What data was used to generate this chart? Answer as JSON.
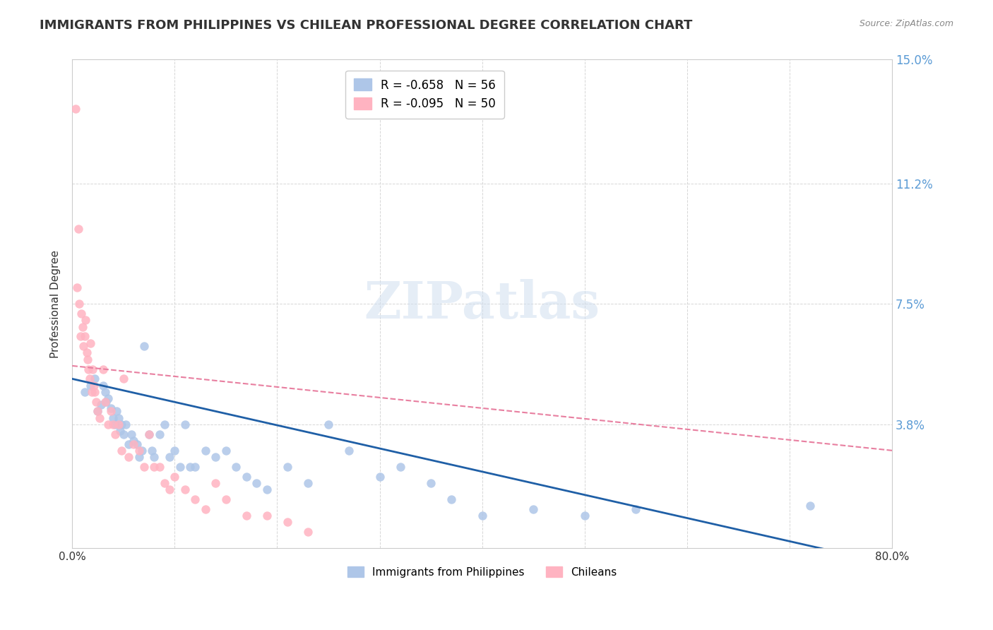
{
  "title": "IMMIGRANTS FROM PHILIPPINES VS CHILEAN PROFESSIONAL DEGREE CORRELATION CHART",
  "source": "Source: ZipAtlas.com",
  "xlabel": "",
  "ylabel": "Professional Degree",
  "xlim": [
    0.0,
    0.8
  ],
  "ylim": [
    0.0,
    0.15
  ],
  "xtick_labels": [
    "0.0%",
    "80.0%"
  ],
  "xtick_positions": [
    0.0,
    0.8
  ],
  "ytick_positions_right": [
    0.0,
    0.038,
    0.075,
    0.112,
    0.15
  ],
  "ytick_labels_right": [
    "",
    "3.8%",
    "7.5%",
    "11.2%",
    "15.0%"
  ],
  "ytick_color_right": "#5b9bd5",
  "legend_entries": [
    {
      "label": "R = -0.658   N = 56",
      "color": "#5b9bd5"
    },
    {
      "label": "R = -0.095   N = 50",
      "color": "#ff9cb0"
    }
  ],
  "legend_label_blue": "Immigrants from Philippines",
  "legend_label_pink": "Chileans",
  "blue_scatter_color": "#aec6e8",
  "pink_scatter_color": "#ffb3c1",
  "blue_line_color": "#1f5fa6",
  "pink_line_color": "#e87fa0",
  "watermark": "ZIPatlas",
  "background_color": "#ffffff",
  "blue_points_x": [
    0.012,
    0.018,
    0.022,
    0.025,
    0.028,
    0.03,
    0.032,
    0.033,
    0.035,
    0.038,
    0.04,
    0.042,
    0.043,
    0.045,
    0.047,
    0.048,
    0.05,
    0.052,
    0.055,
    0.058,
    0.06,
    0.063,
    0.065,
    0.068,
    0.07,
    0.075,
    0.078,
    0.08,
    0.085,
    0.09,
    0.095,
    0.1,
    0.105,
    0.11,
    0.115,
    0.12,
    0.13,
    0.14,
    0.15,
    0.16,
    0.17,
    0.18,
    0.19,
    0.21,
    0.23,
    0.25,
    0.27,
    0.3,
    0.32,
    0.35,
    0.37,
    0.4,
    0.45,
    0.5,
    0.55,
    0.72
  ],
  "blue_points_y": [
    0.048,
    0.05,
    0.052,
    0.042,
    0.044,
    0.05,
    0.048,
    0.045,
    0.046,
    0.043,
    0.04,
    0.038,
    0.042,
    0.04,
    0.036,
    0.038,
    0.035,
    0.038,
    0.032,
    0.035,
    0.033,
    0.032,
    0.028,
    0.03,
    0.062,
    0.035,
    0.03,
    0.028,
    0.035,
    0.038,
    0.028,
    0.03,
    0.025,
    0.038,
    0.025,
    0.025,
    0.03,
    0.028,
    0.03,
    0.025,
    0.022,
    0.02,
    0.018,
    0.025,
    0.02,
    0.038,
    0.03,
    0.022,
    0.025,
    0.02,
    0.015,
    0.01,
    0.012,
    0.01,
    0.012,
    0.013
  ],
  "pink_points_x": [
    0.003,
    0.005,
    0.006,
    0.007,
    0.008,
    0.009,
    0.01,
    0.011,
    0.012,
    0.013,
    0.014,
    0.015,
    0.016,
    0.017,
    0.018,
    0.019,
    0.02,
    0.021,
    0.022,
    0.023,
    0.025,
    0.027,
    0.03,
    0.032,
    0.035,
    0.038,
    0.04,
    0.042,
    0.045,
    0.048,
    0.05,
    0.055,
    0.06,
    0.065,
    0.07,
    0.075,
    0.08,
    0.085,
    0.09,
    0.095,
    0.1,
    0.11,
    0.12,
    0.13,
    0.14,
    0.15,
    0.17,
    0.19,
    0.21,
    0.23
  ],
  "pink_points_y": [
    0.135,
    0.08,
    0.098,
    0.075,
    0.065,
    0.072,
    0.068,
    0.062,
    0.065,
    0.07,
    0.06,
    0.058,
    0.055,
    0.052,
    0.063,
    0.048,
    0.055,
    0.05,
    0.048,
    0.045,
    0.042,
    0.04,
    0.055,
    0.045,
    0.038,
    0.042,
    0.038,
    0.035,
    0.038,
    0.03,
    0.052,
    0.028,
    0.032,
    0.03,
    0.025,
    0.035,
    0.025,
    0.025,
    0.02,
    0.018,
    0.022,
    0.018,
    0.015,
    0.012,
    0.02,
    0.015,
    0.01,
    0.01,
    0.008,
    0.005
  ],
  "blue_line_x": [
    0.0,
    0.8
  ],
  "blue_line_y_start": 0.052,
  "blue_line_y_end": -0.005,
  "pink_line_x": [
    0.0,
    0.8
  ],
  "pink_line_y_start": 0.056,
  "pink_line_y_end": 0.03
}
